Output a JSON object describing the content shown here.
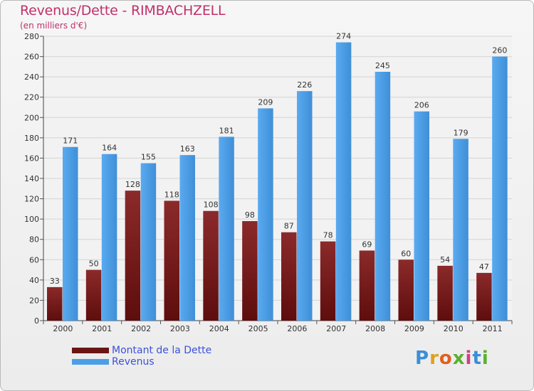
{
  "title": "Revenus/Dette - RIMBACHZELL",
  "subtitle": "(en milliers d'€)",
  "logo_text": "Proxiti",
  "colors": {
    "title": "#c0306a",
    "dette": "#7a1a1a",
    "revenus": "#4a9fe6",
    "legend_text": "#3a52d8"
  },
  "chart_data": {
    "type": "bar",
    "title": "Revenus/Dette - RIMBACHZELL",
    "subtitle": "(en milliers d'€)",
    "categories": [
      "2000",
      "2001",
      "2002",
      "2003",
      "2004",
      "2005",
      "2006",
      "2007",
      "2008",
      "2009",
      "2010",
      "2011"
    ],
    "series": [
      {
        "name": "Montant de la Dette",
        "values": [
          33,
          50,
          128,
          118,
          108,
          98,
          87,
          78,
          69,
          60,
          54,
          47
        ]
      },
      {
        "name": "Revenus",
        "values": [
          171,
          164,
          155,
          163,
          181,
          209,
          226,
          274,
          245,
          206,
          179,
          260
        ]
      }
    ],
    "yticks": [
      "0",
      "20",
      "40",
      "60",
      "80",
      "100",
      "120",
      "140",
      "160",
      "180",
      "200",
      "220",
      "240",
      "260",
      "280"
    ],
    "ylim": [
      0,
      280
    ],
    "grid": true,
    "legend_position": "bottom-left"
  }
}
